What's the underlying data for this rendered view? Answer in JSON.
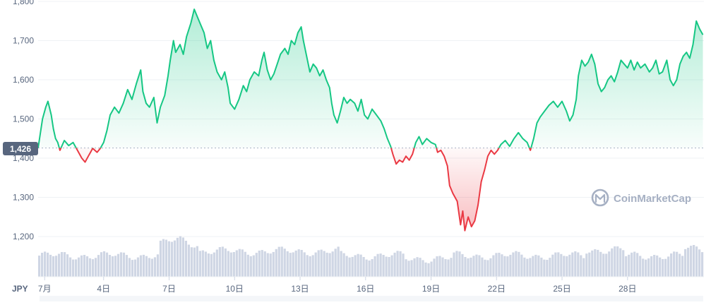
{
  "currency_label": "JPY",
  "watermark": "CoinMarketCap",
  "baseline_label": "1,426",
  "colors": {
    "up_line": "#16c784",
    "down_line": "#ea3943",
    "up_fill": "#16c784",
    "down_fill": "#ea3943",
    "grid": "#eff2f5",
    "axis_text": "#58667e",
    "volume": "#cfd6e4",
    "baseline_badge": "#58667e",
    "watermark": "#a6b0c3"
  },
  "chart_data": {
    "type": "area",
    "title": "",
    "xlabel": "",
    "ylabel": "",
    "baseline": 1426,
    "ylim": [
      1180,
      1810
    ],
    "y_ticks": [
      {
        "value": 1200,
        "label": "1,200"
      },
      {
        "value": 1300,
        "label": "1,300"
      },
      {
        "value": 1400,
        "label": "1,400"
      },
      {
        "value": 1500,
        "label": "1,500"
      },
      {
        "value": 1600,
        "label": "1,600"
      },
      {
        "value": 1700,
        "label": "1,700"
      },
      {
        "value": 1800,
        "label": "1,800"
      }
    ],
    "x_range": [
      1,
      31.5
    ],
    "x_ticks": [
      {
        "value": 1.3,
        "label": "7月"
      },
      {
        "value": 4,
        "label": "4日"
      },
      {
        "value": 7,
        "label": "7日"
      },
      {
        "value": 10,
        "label": "10日"
      },
      {
        "value": 13,
        "label": "13日"
      },
      {
        "value": 16,
        "label": "16日"
      },
      {
        "value": 19,
        "label": "19日"
      },
      {
        "value": 22,
        "label": "22日"
      },
      {
        "value": 25,
        "label": "25日"
      },
      {
        "value": 28,
        "label": "28日"
      }
    ],
    "grid": true,
    "legend": "none",
    "series": [
      {
        "values": [
          [
            1.0,
            1426
          ],
          [
            1.2,
            1500
          ],
          [
            1.35,
            1530
          ],
          [
            1.45,
            1545
          ],
          [
            1.6,
            1510
          ],
          [
            1.7,
            1475
          ],
          [
            1.8,
            1450
          ],
          [
            1.9,
            1440
          ],
          [
            2.0,
            1420
          ],
          [
            2.2,
            1445
          ],
          [
            2.4,
            1432
          ],
          [
            2.6,
            1440
          ],
          [
            2.8,
            1420
          ],
          [
            3.0,
            1400
          ],
          [
            3.15,
            1390
          ],
          [
            3.3,
            1405
          ],
          [
            3.5,
            1425
          ],
          [
            3.7,
            1415
          ],
          [
            3.85,
            1425
          ],
          [
            4.0,
            1440
          ],
          [
            4.15,
            1470
          ],
          [
            4.3,
            1510
          ],
          [
            4.5,
            1530
          ],
          [
            4.7,
            1515
          ],
          [
            4.9,
            1540
          ],
          [
            5.1,
            1575
          ],
          [
            5.3,
            1550
          ],
          [
            5.5,
            1590
          ],
          [
            5.7,
            1625
          ],
          [
            5.8,
            1570
          ],
          [
            5.95,
            1540
          ],
          [
            6.1,
            1530
          ],
          [
            6.3,
            1555
          ],
          [
            6.45,
            1490
          ],
          [
            6.6,
            1530
          ],
          [
            6.8,
            1560
          ],
          [
            6.95,
            1610
          ],
          [
            7.05,
            1650
          ],
          [
            7.2,
            1700
          ],
          [
            7.3,
            1670
          ],
          [
            7.5,
            1690
          ],
          [
            7.65,
            1665
          ],
          [
            7.8,
            1710
          ],
          [
            8.0,
            1745
          ],
          [
            8.15,
            1780
          ],
          [
            8.3,
            1760
          ],
          [
            8.45,
            1740
          ],
          [
            8.6,
            1720
          ],
          [
            8.75,
            1680
          ],
          [
            8.9,
            1700
          ],
          [
            9.05,
            1650
          ],
          [
            9.2,
            1620
          ],
          [
            9.4,
            1600
          ],
          [
            9.55,
            1620
          ],
          [
            9.7,
            1580
          ],
          [
            9.8,
            1540
          ],
          [
            10.0,
            1525
          ],
          [
            10.2,
            1550
          ],
          [
            10.4,
            1585
          ],
          [
            10.55,
            1570
          ],
          [
            10.7,
            1600
          ],
          [
            10.9,
            1620
          ],
          [
            11.1,
            1610
          ],
          [
            11.25,
            1650
          ],
          [
            11.35,
            1670
          ],
          [
            11.5,
            1625
          ],
          [
            11.65,
            1600
          ],
          [
            11.8,
            1615
          ],
          [
            11.95,
            1640
          ],
          [
            12.1,
            1665
          ],
          [
            12.3,
            1680
          ],
          [
            12.45,
            1665
          ],
          [
            12.6,
            1700
          ],
          [
            12.75,
            1690
          ],
          [
            12.9,
            1720
          ],
          [
            13.05,
            1735
          ],
          [
            13.15,
            1700
          ],
          [
            13.3,
            1660
          ],
          [
            13.45,
            1620
          ],
          [
            13.6,
            1640
          ],
          [
            13.75,
            1630
          ],
          [
            13.9,
            1610
          ],
          [
            14.05,
            1625
          ],
          [
            14.2,
            1600
          ],
          [
            14.35,
            1580
          ],
          [
            14.45,
            1540
          ],
          [
            14.55,
            1510
          ],
          [
            14.7,
            1490
          ],
          [
            14.85,
            1520
          ],
          [
            15.0,
            1555
          ],
          [
            15.15,
            1540
          ],
          [
            15.3,
            1550
          ],
          [
            15.5,
            1540
          ],
          [
            15.65,
            1520
          ],
          [
            15.8,
            1550
          ],
          [
            15.95,
            1510
          ],
          [
            16.1,
            1500
          ],
          [
            16.3,
            1525
          ],
          [
            16.5,
            1510
          ],
          [
            16.7,
            1495
          ],
          [
            16.85,
            1475
          ],
          [
            17.0,
            1450
          ],
          [
            17.15,
            1430
          ],
          [
            17.25,
            1410
          ],
          [
            17.4,
            1385
          ],
          [
            17.55,
            1395
          ],
          [
            17.7,
            1390
          ],
          [
            17.85,
            1405
          ],
          [
            18.0,
            1395
          ],
          [
            18.15,
            1410
          ],
          [
            18.3,
            1440
          ],
          [
            18.45,
            1455
          ],
          [
            18.6,
            1435
          ],
          [
            18.8,
            1450
          ],
          [
            19.0,
            1440
          ],
          [
            19.2,
            1435
          ],
          [
            19.3,
            1415
          ],
          [
            19.45,
            1420
          ],
          [
            19.6,
            1405
          ],
          [
            19.75,
            1380
          ],
          [
            19.85,
            1330
          ],
          [
            20.0,
            1310
          ],
          [
            20.1,
            1300
          ],
          [
            20.2,
            1290
          ],
          [
            20.35,
            1230
          ],
          [
            20.45,
            1265
          ],
          [
            20.55,
            1215
          ],
          [
            20.7,
            1250
          ],
          [
            20.85,
            1225
          ],
          [
            21.0,
            1240
          ],
          [
            21.15,
            1280
          ],
          [
            21.3,
            1340
          ],
          [
            21.45,
            1370
          ],
          [
            21.6,
            1405
          ],
          [
            21.75,
            1420
          ],
          [
            21.9,
            1410
          ],
          [
            22.05,
            1420
          ],
          [
            22.2,
            1435
          ],
          [
            22.4,
            1445
          ],
          [
            22.6,
            1430
          ],
          [
            22.8,
            1450
          ],
          [
            23.0,
            1465
          ],
          [
            23.2,
            1450
          ],
          [
            23.4,
            1440
          ],
          [
            23.55,
            1420
          ],
          [
            23.7,
            1450
          ],
          [
            23.85,
            1490
          ],
          [
            24.0,
            1505
          ],
          [
            24.2,
            1520
          ],
          [
            24.4,
            1535
          ],
          [
            24.6,
            1545
          ],
          [
            24.8,
            1530
          ],
          [
            25.0,
            1545
          ],
          [
            25.2,
            1520
          ],
          [
            25.35,
            1495
          ],
          [
            25.5,
            1510
          ],
          [
            25.65,
            1550
          ],
          [
            25.75,
            1610
          ],
          [
            25.9,
            1650
          ],
          [
            26.05,
            1635
          ],
          [
            26.2,
            1645
          ],
          [
            26.35,
            1665
          ],
          [
            26.5,
            1640
          ],
          [
            26.65,
            1590
          ],
          [
            26.8,
            1570
          ],
          [
            26.95,
            1580
          ],
          [
            27.1,
            1600
          ],
          [
            27.25,
            1610
          ],
          [
            27.4,
            1595
          ],
          [
            27.55,
            1620
          ],
          [
            27.7,
            1650
          ],
          [
            27.85,
            1640
          ],
          [
            28.0,
            1630
          ],
          [
            28.15,
            1650
          ],
          [
            28.3,
            1625
          ],
          [
            28.45,
            1645
          ],
          [
            28.6,
            1630
          ],
          [
            28.8,
            1640
          ],
          [
            29.0,
            1620
          ],
          [
            29.15,
            1630
          ],
          [
            29.3,
            1650
          ],
          [
            29.45,
            1615
          ],
          [
            29.6,
            1620
          ],
          [
            29.8,
            1650
          ],
          [
            29.95,
            1600
          ],
          [
            30.1,
            1585
          ],
          [
            30.25,
            1600
          ],
          [
            30.4,
            1640
          ],
          [
            30.55,
            1660
          ],
          [
            30.7,
            1670
          ],
          [
            30.85,
            1655
          ],
          [
            31.0,
            1690
          ],
          [
            31.15,
            1750
          ],
          [
            31.3,
            1730
          ],
          [
            31.45,
            1715
          ]
        ]
      }
    ]
  }
}
